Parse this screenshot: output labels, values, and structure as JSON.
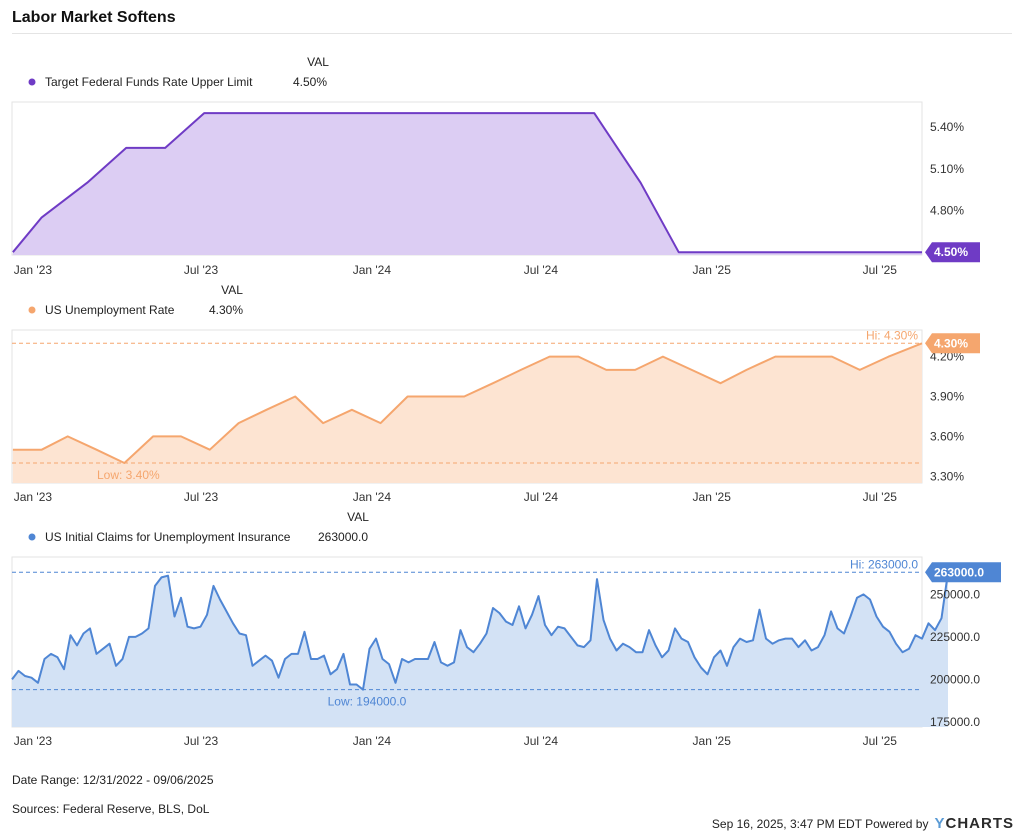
{
  "title": "Labor Market Softens",
  "legend_header": "VAL",
  "x_ticks": [
    "Jan '23",
    "Jul '23",
    "Jan '24",
    "Jul '24",
    "Jan '25",
    "Jul '25"
  ],
  "footer": {
    "date_range": "Date Range: 12/31/2022 - 09/06/2025",
    "sources": "Sources: Federal Reserve, BLS, DoL",
    "timestamp": "Sep 16, 2025, 3:47 PM EDT Powered by",
    "brand_y": "Y",
    "brand_rest": "CHARTS"
  },
  "chart_data": [
    {
      "type": "area",
      "series_name": "Target Federal Funds Rate Upper Limit",
      "value_label": "4.50%",
      "color": "#6f3bc5",
      "fill": "#dccdf3",
      "x_start": "2022-12-31",
      "x_end": "2025-09-06",
      "ylim": [
        4.48,
        5.58
      ],
      "y_ticks": [
        "5.40%",
        "5.10%",
        "4.80%"
      ],
      "y_tick_values": [
        5.4,
        5.1,
        4.8
      ],
      "decimals": 2,
      "suffix": "%",
      "points": [
        [
          "2023-01-01",
          4.5
        ],
        [
          "2023-02-01",
          4.75
        ],
        [
          "2023-03-22",
          5.0
        ],
        [
          "2023-05-03",
          5.25
        ],
        [
          "2023-06-14",
          5.25
        ],
        [
          "2023-07-26",
          5.5
        ],
        [
          "2024-09-18",
          5.5
        ],
        [
          "2024-11-07",
          5.0
        ],
        [
          "2024-12-18",
          4.5
        ],
        [
          "2025-09-06",
          4.5
        ]
      ]
    },
    {
      "type": "area",
      "series_name": "US Unemployment Rate",
      "value_label": "4.30%",
      "color": "#f5a66e",
      "fill": "#fde4d2",
      "x_start": "2022-12-31",
      "x_end": "2025-09-06",
      "ylim": [
        3.25,
        4.4
      ],
      "y_ticks": [
        "4.20%",
        "3.90%",
        "3.60%",
        "3.30%"
      ],
      "y_tick_values": [
        4.2,
        3.9,
        3.6,
        3.3
      ],
      "decimals": 2,
      "suffix": "%",
      "hi_label": "Hi: 4.30%",
      "low_label": "Low: 3.40%",
      "hi": 4.3,
      "low": 3.4,
      "points": [
        [
          "2023-01-01",
          3.5
        ],
        [
          "2023-02-01",
          3.5
        ],
        [
          "2023-03-01",
          3.6
        ],
        [
          "2023-04-01",
          3.5
        ],
        [
          "2023-05-01",
          3.4
        ],
        [
          "2023-06-01",
          3.6
        ],
        [
          "2023-07-01",
          3.6
        ],
        [
          "2023-08-01",
          3.5
        ],
        [
          "2023-09-01",
          3.7
        ],
        [
          "2023-10-01",
          3.8
        ],
        [
          "2023-11-01",
          3.9
        ],
        [
          "2023-12-01",
          3.7
        ],
        [
          "2024-01-01",
          3.8
        ],
        [
          "2024-02-01",
          3.7
        ],
        [
          "2024-03-01",
          3.9
        ],
        [
          "2024-04-01",
          3.9
        ],
        [
          "2024-05-01",
          3.9
        ],
        [
          "2024-06-01",
          4.0
        ],
        [
          "2024-07-01",
          4.1
        ],
        [
          "2024-08-01",
          4.2
        ],
        [
          "2024-09-01",
          4.2
        ],
        [
          "2024-10-01",
          4.1
        ],
        [
          "2024-11-01",
          4.1
        ],
        [
          "2024-12-01",
          4.2
        ],
        [
          "2025-01-01",
          4.1
        ],
        [
          "2025-02-01",
          4.0
        ],
        [
          "2025-03-01",
          4.1
        ],
        [
          "2025-04-01",
          4.2
        ],
        [
          "2025-05-01",
          4.2
        ],
        [
          "2025-06-01",
          4.2
        ],
        [
          "2025-07-01",
          4.1
        ],
        [
          "2025-08-01",
          4.2
        ],
        [
          "2025-09-06",
          4.3
        ]
      ]
    },
    {
      "type": "area",
      "series_name": "US Initial Claims for Unemployment Insurance",
      "value_label": "263000.0",
      "color": "#4f86d4",
      "fill": "#d3e2f5",
      "x_start": "2022-12-31",
      "x_end": "2025-09-06",
      "ylim": [
        172000,
        272000
      ],
      "y_ticks": [
        "250000.0",
        "225000.0",
        "200000.0",
        "175000.0"
      ],
      "y_tick_values": [
        250000,
        225000,
        200000,
        175000
      ],
      "decimals": 1,
      "suffix": "",
      "hi_label": "Hi: 263000.0",
      "low_label": "Low: 194000.0",
      "hi": 263000,
      "low": 194000,
      "start": "2022-12-31",
      "step_days": 7,
      "values": [
        200000,
        205000,
        202000,
        201000,
        198000,
        212000,
        215000,
        213000,
        206000,
        226000,
        220000,
        227000,
        230000,
        215000,
        218000,
        221000,
        208000,
        212000,
        225000,
        225000,
        227000,
        230000,
        255000,
        260000,
        261000,
        237000,
        248000,
        231000,
        230000,
        231000,
        238000,
        255000,
        247000,
        240000,
        233000,
        227000,
        226000,
        208000,
        211000,
        214000,
        211000,
        201000,
        212000,
        215000,
        215000,
        228000,
        212000,
        212000,
        214000,
        203000,
        206000,
        215000,
        197000,
        197000,
        194000,
        218000,
        224000,
        212000,
        209000,
        198000,
        212000,
        210000,
        212000,
        212000,
        212000,
        222000,
        210000,
        208000,
        210000,
        229000,
        219000,
        216000,
        221000,
        227000,
        242000,
        239000,
        234000,
        232000,
        243000,
        230000,
        238000,
        249000,
        232000,
        226000,
        231000,
        230000,
        225000,
        220000,
        219000,
        223000,
        259000,
        235000,
        224000,
        217000,
        221000,
        219000,
        216000,
        216000,
        229000,
        220000,
        213000,
        217000,
        230000,
        224000,
        222000,
        213000,
        207000,
        203000,
        213000,
        217000,
        208000,
        219000,
        224000,
        222000,
        223000,
        241000,
        224000,
        221000,
        223000,
        224000,
        224000,
        219000,
        223000,
        217000,
        219000,
        226000,
        240000,
        230000,
        227000,
        237000,
        248000,
        250000,
        247000,
        237000,
        231000,
        228000,
        221000,
        216000,
        218000,
        226000,
        224000,
        233000,
        229000,
        236000,
        263000
      ]
    }
  ]
}
